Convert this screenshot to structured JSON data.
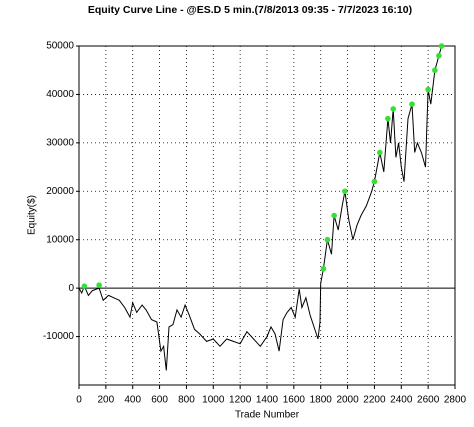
{
  "chart_data": {
    "type": "line",
    "title": "Equity Curve Line - @ES.D 5 min.(7/8/2013 09:35 - 7/7/2023 16:10)",
    "x_label": "Trade Number",
    "y_label": "Equity($)",
    "xlim": [
      0,
      2800
    ],
    "xticks": [
      0,
      200,
      400,
      600,
      800,
      1000,
      1200,
      1400,
      1600,
      1800,
      2000,
      2200,
      2400,
      2600,
      2800
    ],
    "ylim": [
      -20000,
      50000
    ],
    "yticks": [
      -10000,
      0,
      10000,
      20000,
      30000,
      40000,
      50000
    ],
    "grid": true,
    "series": [
      {
        "color": "#000000",
        "x": [
          0,
          20,
          40,
          70,
          100,
          150,
          180,
          220,
          260,
          300,
          340,
          380,
          400,
          430,
          470,
          500,
          540,
          580,
          610,
          630,
          650,
          670,
          700,
          730,
          760,
          790,
          820,
          860,
          900,
          950,
          1000,
          1050,
          1100,
          1150,
          1200,
          1250,
          1300,
          1350,
          1400,
          1430,
          1460,
          1490,
          1520,
          1550,
          1580,
          1610,
          1640,
          1660,
          1690,
          1720,
          1750,
          1780,
          1795,
          1800,
          1820,
          1850,
          1880,
          1900,
          1930,
          1960,
          1980,
          2010,
          2040,
          2070,
          2100,
          2140,
          2180,
          2200,
          2220,
          2240,
          2270,
          2300,
          2320,
          2340,
          2360,
          2380,
          2400,
          2420,
          2450,
          2480,
          2500,
          2520,
          2550,
          2580,
          2600,
          2620,
          2650,
          2680,
          2700
        ],
        "values": [
          0,
          -1000,
          400,
          -1500,
          -500,
          0,
          -2500,
          -1500,
          -2000,
          -2500,
          -4000,
          -6000,
          -3000,
          -5000,
          -3500,
          -4500,
          -6500,
          -7000,
          -13000,
          -12000,
          -17000,
          -8000,
          -7500,
          -4500,
          -6000,
          -3500,
          -5500,
          -8500,
          -9500,
          -11000,
          -10500,
          -12000,
          -10500,
          -11000,
          -11500,
          -9000,
          -10500,
          -12000,
          -10000,
          -8000,
          -9500,
          -13000,
          -6500,
          -5000,
          -4000,
          -6000,
          -200,
          -4000,
          -2000,
          -5500,
          -8000,
          -10500,
          -7000,
          1000,
          4000,
          10000,
          7000,
          15000,
          12000,
          17000,
          20000,
          14000,
          10000,
          13000,
          15000,
          17000,
          20000,
          22000,
          25000,
          28000,
          24000,
          35000,
          30000,
          37000,
          27000,
          30000,
          25000,
          22000,
          35000,
          38000,
          28000,
          30000,
          28000,
          25000,
          41000,
          38000,
          45000,
          48000,
          50000
        ]
      },
      {
        "color": "#33e033",
        "x": [
          40,
          150,
          1820,
          1850,
          1900,
          1980,
          2200,
          2240,
          2300,
          2340,
          2480,
          2600,
          2650,
          2680,
          2700
        ],
        "values": [
          400,
          600,
          4000,
          10000,
          15000,
          20000,
          22000,
          28000,
          35000,
          37000,
          38000,
          41000,
          45000,
          48000,
          50000
        ]
      }
    ]
  }
}
